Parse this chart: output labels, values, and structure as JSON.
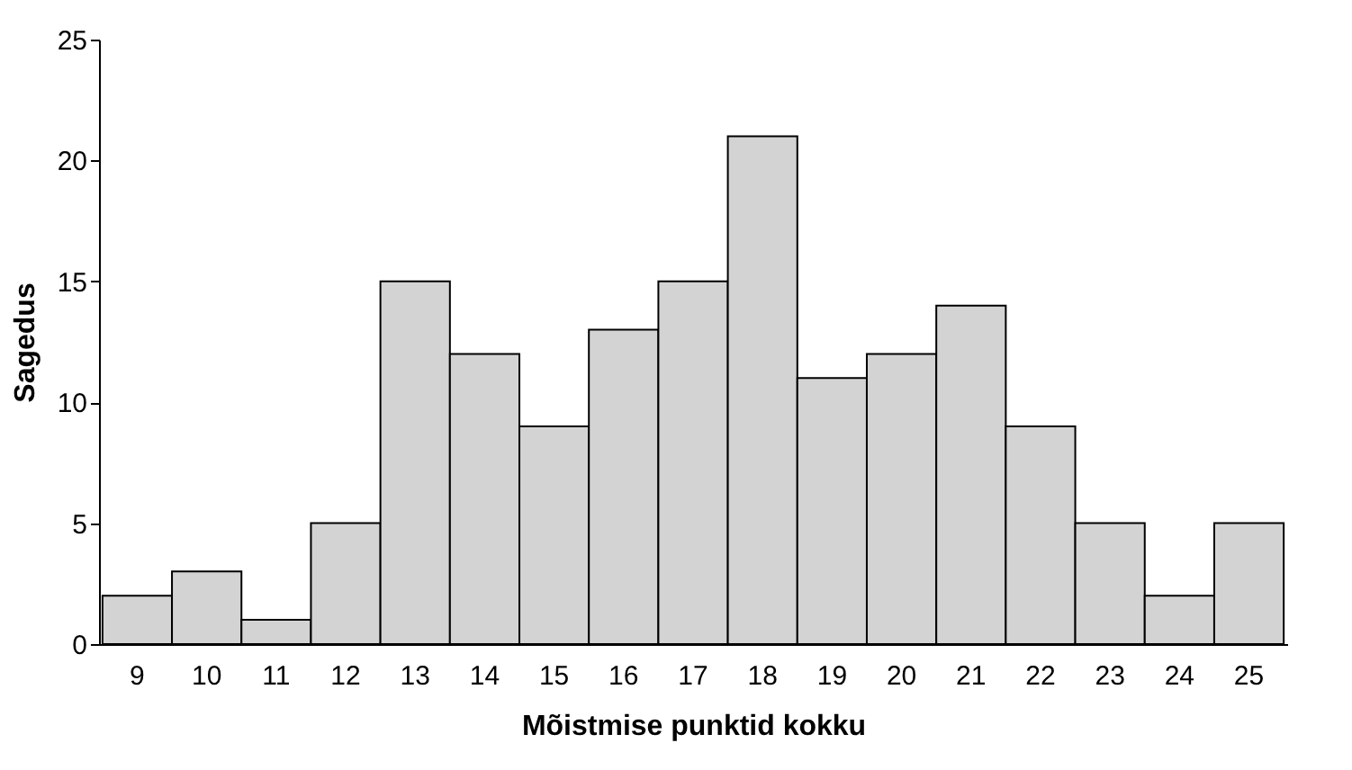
{
  "chart_data": {
    "type": "bar",
    "xlabel": "Mõistmise punktid kokku",
    "ylabel": "Sagedus",
    "categories": [
      "9",
      "10",
      "11",
      "12",
      "13",
      "14",
      "15",
      "16",
      "17",
      "18",
      "19",
      "20",
      "21",
      "22",
      "23",
      "24",
      "25"
    ],
    "values": [
      2,
      3,
      1,
      5,
      15,
      12,
      9,
      13,
      15,
      21,
      11,
      12,
      14,
      9,
      5,
      2,
      5
    ],
    "color": "#d3d3d3",
    "ylim": [
      0,
      25
    ],
    "yticks": [
      0,
      5,
      10,
      15,
      20,
      25
    ],
    "grid": false
  }
}
